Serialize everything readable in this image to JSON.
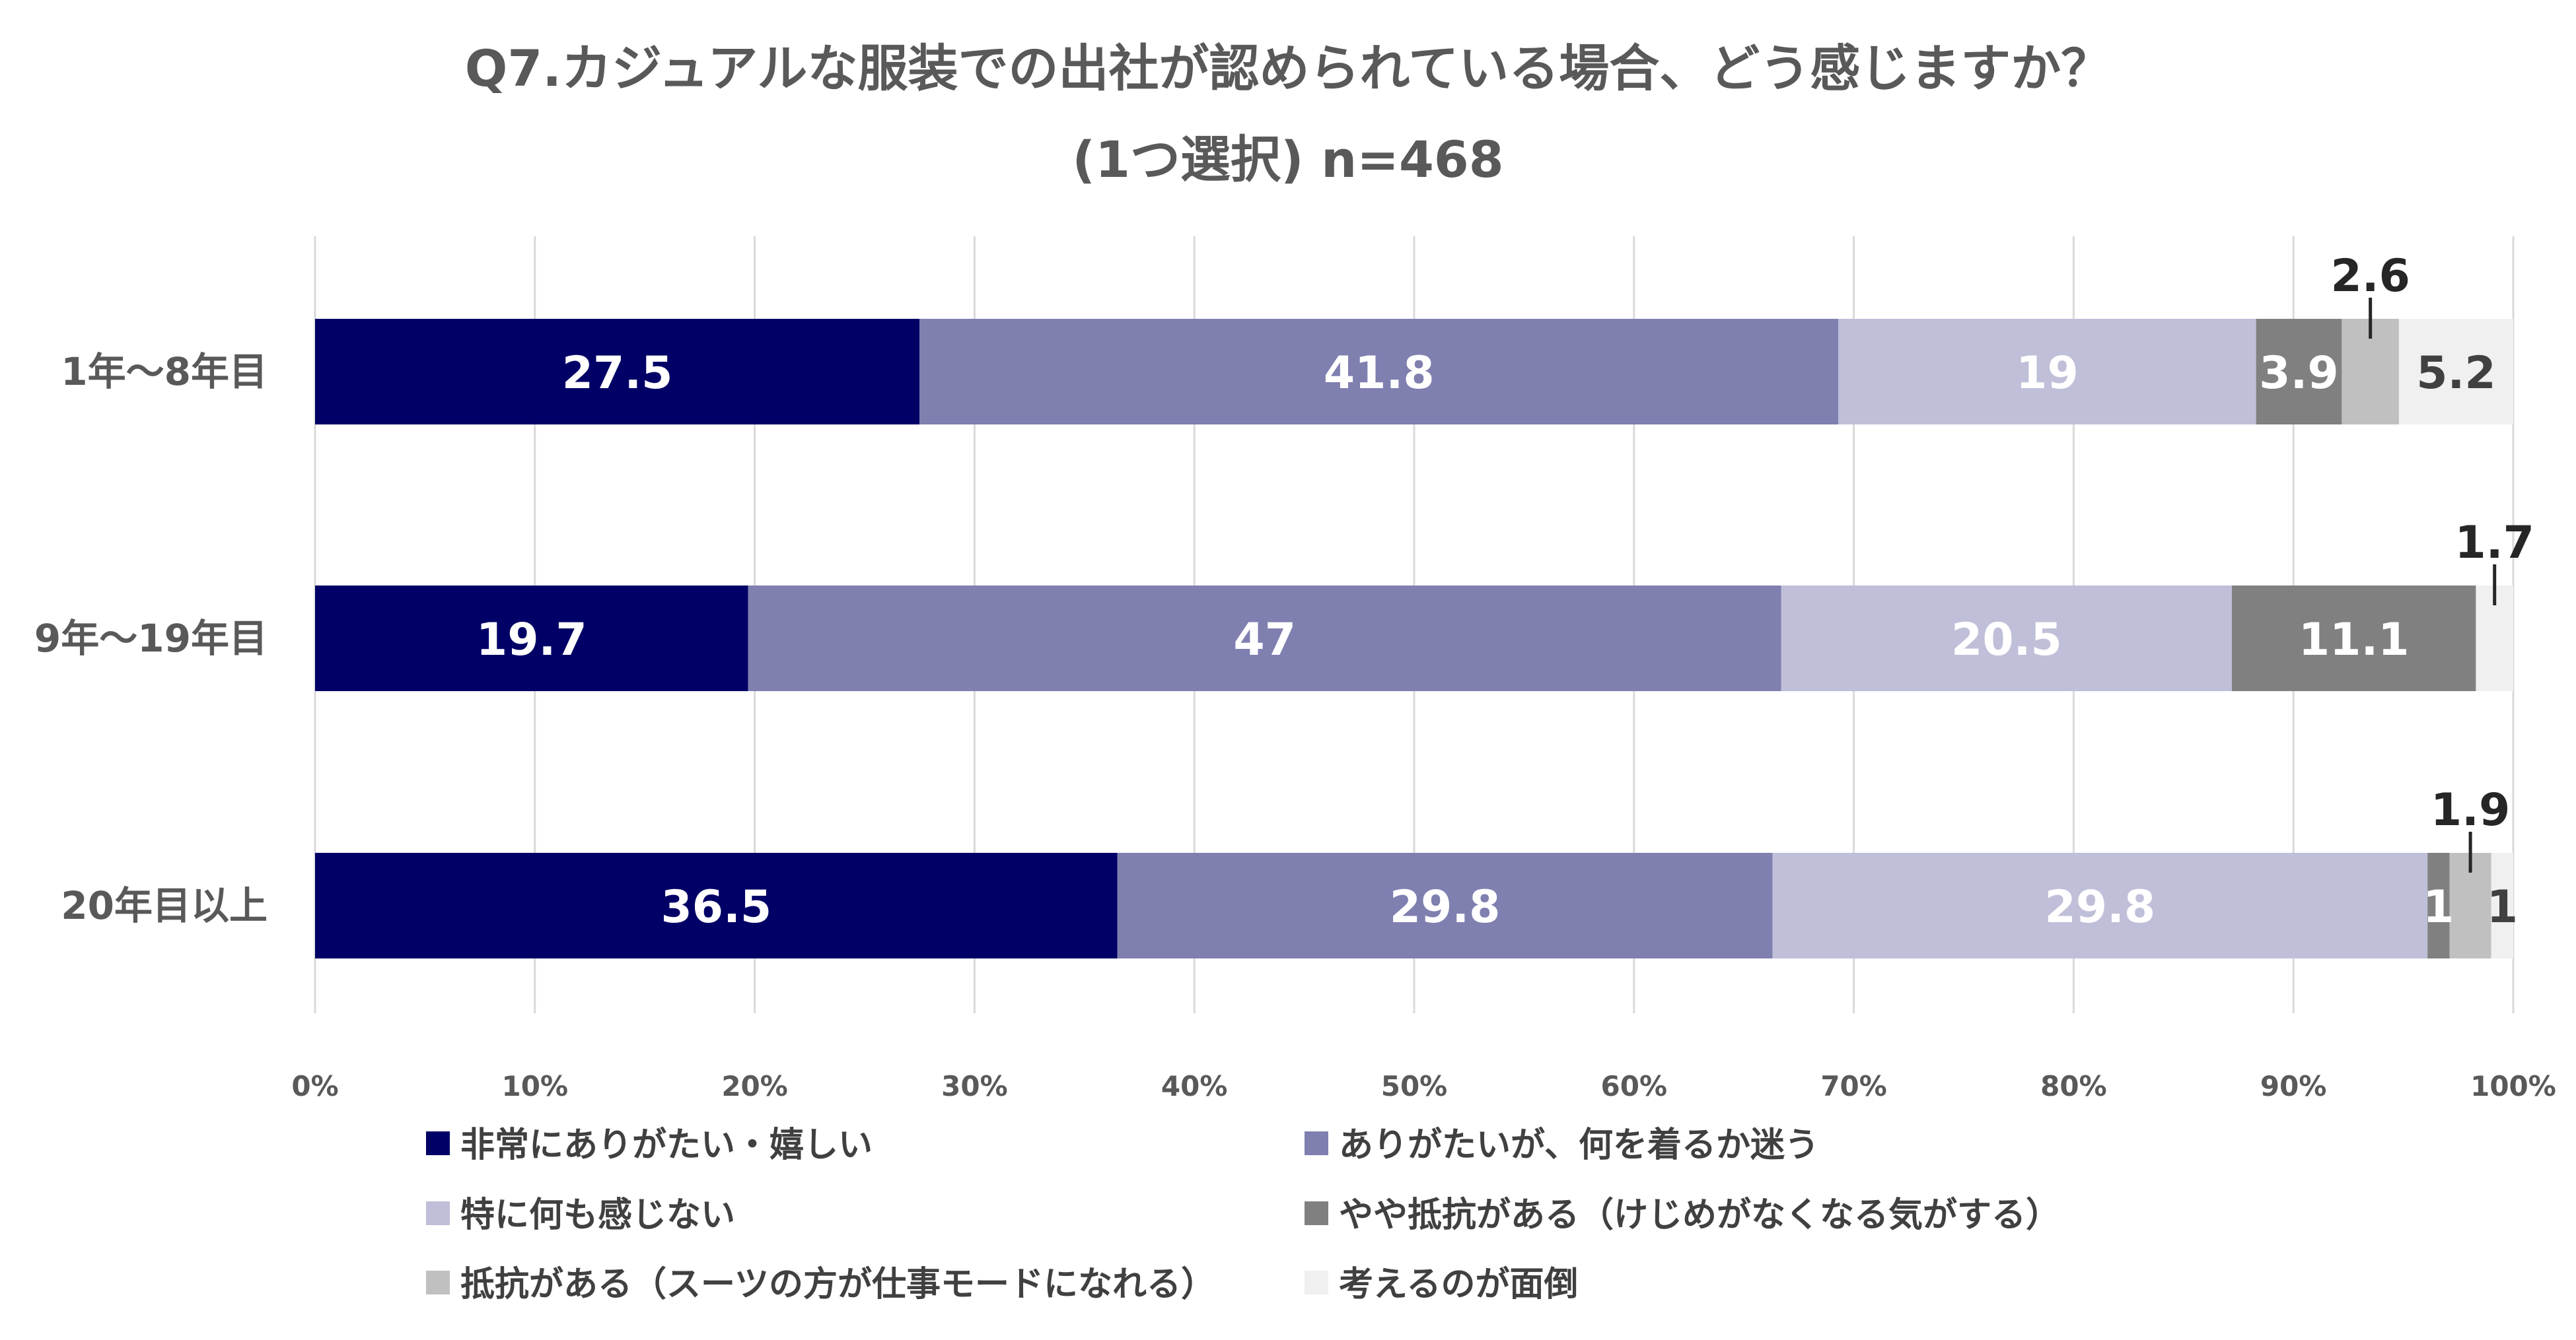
{
  "chart_data": {
    "type": "bar",
    "orientation": "horizontal",
    "stacked": "percent",
    "title": "Q7.カジュアルな服装での出社が認められている場合、どう感じますか？",
    "subtitle": "(1つ選択) n=468",
    "categories": [
      "1年〜8年目",
      "9年〜19年目",
      "20年目以上"
    ],
    "series": [
      {
        "name": "非常にありがたい・嬉しい",
        "values": [
          27.5,
          19.7,
          36.5
        ],
        "color": "#000066",
        "label_color": "#ffffff"
      },
      {
        "name": "ありがたいが、何を着るか迷う",
        "values": [
          41.8,
          47,
          29.8
        ],
        "color": "#7f7fb0",
        "label_color": "#ffffff"
      },
      {
        "name": "特に何も感じない",
        "values": [
          19,
          20.5,
          29.8
        ],
        "color": "#bfbfd9",
        "label_color": "#ffffff"
      },
      {
        "name": "やや抵抗がある（けじめがなくなる気がする）",
        "values": [
          3.9,
          11.1,
          1
        ],
        "color": "#808080",
        "label_color": "#ffffff"
      },
      {
        "name": "抵抗がある（スーツの方が仕事モードになれる）",
        "values": [
          2.6,
          0,
          1.9
        ],
        "color": "#c0c0c0",
        "label_color": "#404040"
      },
      {
        "name": "考えるのが面倒",
        "values": [
          5.2,
          1.7,
          1
        ],
        "color": "#f0f0f0",
        "label_color": "#404040"
      }
    ],
    "data_labels": [
      [
        "27.5",
        "41.8",
        "19",
        "3.9",
        "2.6",
        "5.2"
      ],
      [
        "19.7",
        "47",
        "20.5",
        "11.1",
        "",
        "1.7"
      ],
      [
        "36.5",
        "29.8",
        "29.8",
        "1",
        "1.9",
        "1"
      ]
    ],
    "callout_series": [
      [
        4
      ],
      [
        5
      ],
      [
        4
      ]
    ],
    "x_ticks": [
      "0%",
      "10%",
      "20%",
      "30%",
      "40%",
      "50%",
      "60%",
      "70%",
      "80%",
      "90%",
      "100%"
    ],
    "xlim": [
      0,
      100
    ],
    "grid": true,
    "legend_position": "bottom"
  }
}
